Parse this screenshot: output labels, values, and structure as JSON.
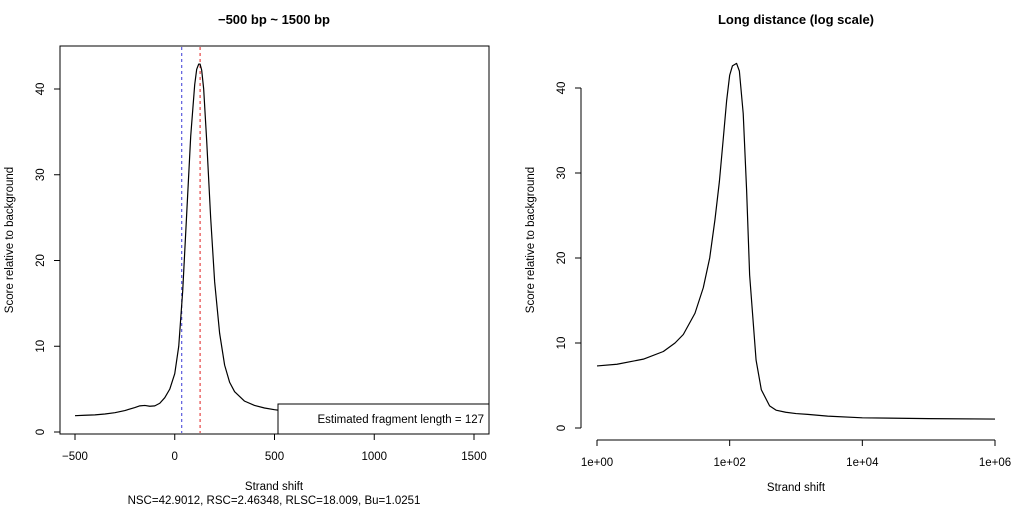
{
  "chart_data": [
    {
      "type": "line",
      "title": "−500 bp ~ 1500 bp",
      "xlabel": "Strand shift",
      "ylabel": "Score relative to background",
      "xlim": [
        -500,
        1500
      ],
      "ylim": [
        0,
        43
      ],
      "x_ticks": [
        -500,
        0,
        500,
        1000,
        1500
      ],
      "y_ticks": [
        0,
        10,
        20,
        30,
        40
      ],
      "grid": false,
      "series": [
        {
          "x": [
            -500,
            -450,
            -400,
            -350,
            -300,
            -250,
            -200,
            -175,
            -150,
            -125,
            -100,
            -75,
            -50,
            -25,
            0,
            20,
            40,
            60,
            80,
            100,
            110,
            120,
            127,
            135,
            145,
            160,
            180,
            200,
            225,
            250,
            275,
            300,
            350,
            400,
            450,
            500,
            550,
            600,
            700,
            800,
            900,
            1000,
            1100,
            1200,
            1300,
            1400,
            1500
          ],
          "y": [
            1.9,
            1.95,
            2.0,
            2.1,
            2.25,
            2.5,
            2.85,
            3.05,
            3.1,
            3.0,
            3.05,
            3.35,
            4.0,
            5.0,
            6.8,
            10.0,
            16.5,
            25.5,
            34.5,
            40.5,
            42.3,
            42.9,
            42.9,
            42.2,
            40.0,
            34.0,
            25.0,
            17.5,
            11.5,
            7.8,
            5.8,
            4.7,
            3.6,
            3.1,
            2.8,
            2.6,
            2.45,
            2.35,
            2.2,
            2.05,
            1.95,
            1.85,
            1.8,
            1.75,
            1.7,
            1.68,
            1.66
          ]
        }
      ],
      "vlines": [
        {
          "x": 35,
          "color": "#3a3ad6",
          "style": "dashed"
        },
        {
          "x": 127,
          "color": "#e02020",
          "style": "dashed"
        }
      ],
      "legend": {
        "position": "bottom-right",
        "text": "Estimated fragment length =  127"
      },
      "footer": "NSC=42.9012, RSC=2.46348, RLSC=18.009, Bu=1.0251"
    },
    {
      "type": "line",
      "title": "Long distance (log scale)",
      "xlabel": "Strand shift",
      "ylabel": "Score relative to background",
      "x_scale": "log",
      "xlim": [
        1,
        1000000
      ],
      "ylim": [
        0,
        43
      ],
      "x_ticks": [
        1,
        100,
        10000,
        1000000
      ],
      "x_tick_labels": [
        "1e+00",
        "1e+02",
        "1e+04",
        "1e+06"
      ],
      "y_ticks": [
        0,
        10,
        20,
        30,
        40
      ],
      "grid": false,
      "series": [
        {
          "x": [
            1,
            2,
            5,
            10,
            15,
            20,
            30,
            40,
            50,
            60,
            70,
            80,
            90,
            100,
            110,
            127,
            140,
            160,
            180,
            200,
            250,
            300,
            400,
            500,
            700,
            1000,
            1500,
            3000,
            10000,
            100000,
            1000000
          ],
          "y": [
            7.3,
            7.5,
            8.1,
            9.0,
            10.0,
            11.0,
            13.5,
            16.5,
            20.0,
            24.5,
            29.0,
            34.0,
            38.5,
            41.5,
            42.6,
            42.9,
            42.0,
            37.0,
            28.0,
            18.0,
            8.0,
            4.5,
            2.6,
            2.1,
            1.85,
            1.7,
            1.6,
            1.4,
            1.2,
            1.1,
            1.05
          ]
        }
      ]
    }
  ]
}
